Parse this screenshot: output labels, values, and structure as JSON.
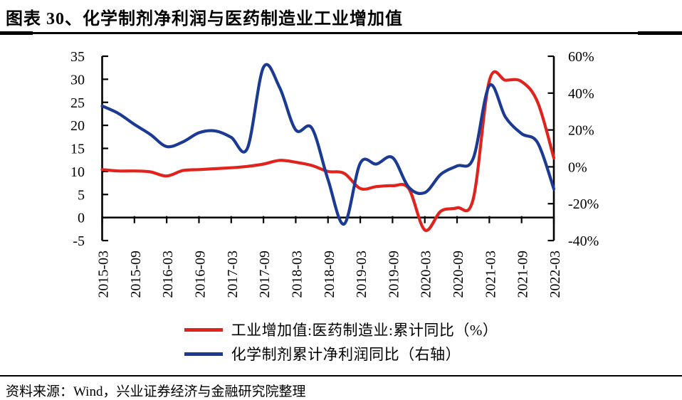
{
  "header": {
    "title": "图表 30、化学制剂净利润与医药制造业工业增加值"
  },
  "footer": {
    "source": "资料来源：Wind，兴业证券经济与金融研究院整理"
  },
  "colors": {
    "red_series": "#e0231c",
    "blue_series": "#1b3a94",
    "axis": "#000000"
  },
  "chart_data": {
    "type": "line",
    "title": "化学制剂净利润与医药制造业工业增加值",
    "line_style": "smooth",
    "grid": false,
    "legend_position": "bottom",
    "categories": [
      "2015-03",
      "2015-06",
      "2015-09",
      "2015-12",
      "2016-03",
      "2016-06",
      "2016-09",
      "2016-12",
      "2017-03",
      "2017-06",
      "2017-09",
      "2017-12",
      "2018-03",
      "2018-06",
      "2018-09",
      "2018-12",
      "2019-03",
      "2019-06",
      "2019-09",
      "2019-12",
      "2020-03",
      "2020-06",
      "2020-09",
      "2020-12",
      "2021-03",
      "2021-06",
      "2021-09",
      "2021-12",
      "2022-03"
    ],
    "x_tick_labels": [
      "2015-03",
      "2015-09",
      "2016-03",
      "2016-09",
      "2017-03",
      "2017-09",
      "2018-03",
      "2018-09",
      "2019-03",
      "2019-09",
      "2020-03",
      "2020-09",
      "2021-03",
      "2021-09",
      "2022-03"
    ],
    "series": [
      {
        "name": "工业增加值:医药制造业:累计同比（%）",
        "axis": "left",
        "color": "#e0231c",
        "values": [
          10.4,
          10.1,
          10.1,
          9.9,
          9.0,
          10.2,
          10.4,
          10.6,
          10.8,
          11.1,
          11.6,
          12.4,
          12.0,
          11.3,
          10.0,
          9.6,
          6.3,
          6.7,
          6.9,
          6.3,
          -2.7,
          1.4,
          2.1,
          4.0,
          29.7,
          29.8,
          29.5,
          25.0,
          12.9
        ]
      },
      {
        "name": "化学制剂累计净利润同比（右轴）",
        "axis": "right",
        "color": "#1b3a94",
        "values": [
          33,
          29,
          23,
          17.5,
          11,
          13.5,
          18.5,
          19.5,
          16,
          10,
          54,
          43,
          20,
          21,
          -7,
          -31,
          2,
          1.5,
          5,
          -11,
          -14,
          -4,
          0.5,
          4.5,
          44,
          27,
          18,
          13,
          -12
        ]
      }
    ],
    "left_axis": {
      "min": -5,
      "max": 35,
      "step": 5,
      "tick_labels": [
        "35",
        "30",
        "25",
        "20",
        "15",
        "10",
        "5",
        "0",
        "-5"
      ]
    },
    "right_axis": {
      "min": -40,
      "max": 60,
      "step": 20,
      "tick_labels": [
        "60%",
        "40%",
        "20%",
        "0%",
        "-20%",
        "-40%"
      ]
    }
  }
}
